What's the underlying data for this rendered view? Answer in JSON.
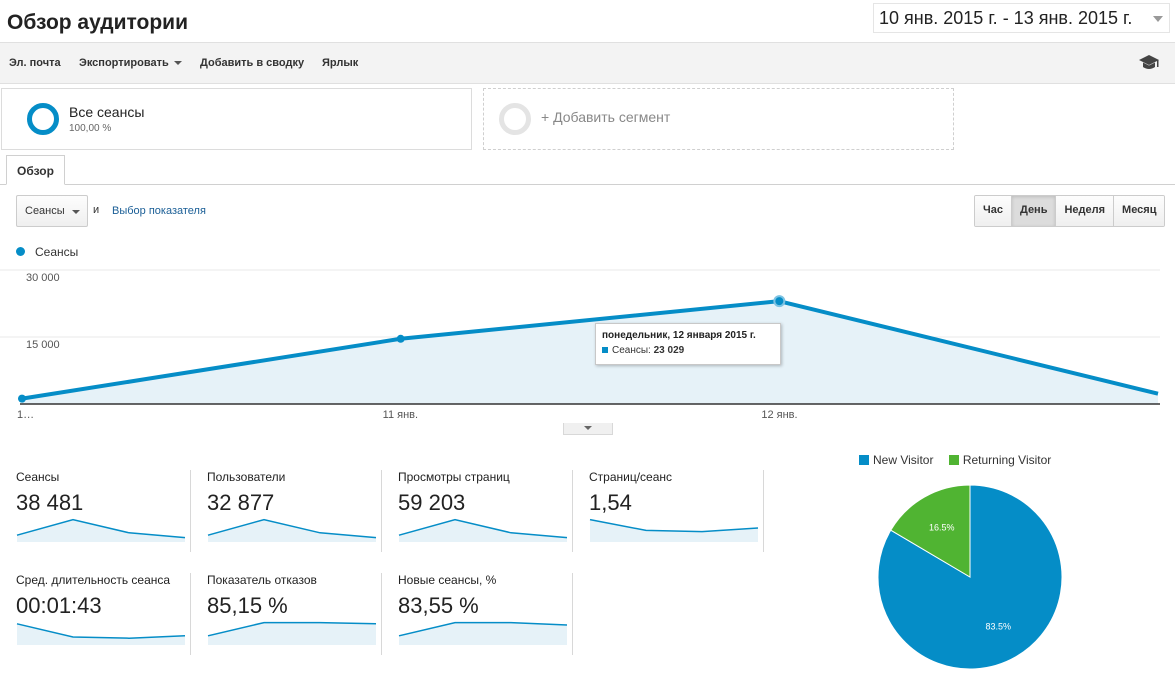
{
  "header": {
    "title": "Обзор аудитории",
    "date_range": "10 янв. 2015 г. - 13 янв. 2015 г."
  },
  "toolbar": {
    "email": "Эл. почта",
    "export": "Экспортировать",
    "add_dashboard": "Добавить в сводку",
    "shortcut": "Ярлык"
  },
  "segments": {
    "all_name": "Все сеансы",
    "all_pct": "100,00 %",
    "add_label": "+ Добавить сегмент"
  },
  "tabs": {
    "overview": "Обзор"
  },
  "controls": {
    "metric": "Сеансы",
    "and": "и",
    "pick_metric": "Выбор показателя",
    "periods": [
      "Час",
      "День",
      "Неделя",
      "Месяц"
    ],
    "active_period": "День"
  },
  "colors": {
    "accent": "#058dc7",
    "returning": "#50b432",
    "area_fill": "#e6f2f8"
  },
  "chart_data": [
    {
      "type": "area",
      "series": [
        {
          "name": "Сеансы",
          "values": [
            1200,
            14600,
            23029,
            2300
          ]
        }
      ],
      "x": [
        "1…",
        "11 янв.",
        "12 янв.",
        ""
      ],
      "ylim": [
        0,
        30000
      ],
      "yticks": [
        "30 000",
        "15 000"
      ],
      "tick_values": [
        30000,
        15000
      ],
      "grid": true,
      "tooltip": {
        "title": "понедельник, 12 января 2015 г.",
        "label": "Сеансы:",
        "value": "23 029",
        "point_index": 2
      }
    },
    {
      "type": "pie",
      "categories": [
        "New Visitor",
        "Returning Visitor"
      ],
      "values": [
        83.5,
        16.5
      ],
      "labels": [
        "83.5%",
        "16.5%"
      ],
      "colors": [
        "#058dc7",
        "#50b432"
      ],
      "legend": "top"
    }
  ],
  "kpis": [
    {
      "label": "Сеансы",
      "value": "38 481",
      "spark": [
        0.8,
        0.15,
        0.7,
        0.9
      ]
    },
    {
      "label": "Пользователи",
      "value": "32 877",
      "spark": [
        0.8,
        0.15,
        0.7,
        0.9
      ]
    },
    {
      "label": "Просмотры страниц",
      "value": "59 203",
      "spark": [
        0.8,
        0.15,
        0.7,
        0.9
      ]
    },
    {
      "label": "Страниц/сеанс",
      "value": "1,54",
      "spark": [
        0.15,
        0.6,
        0.65,
        0.5
      ]
    },
    {
      "label": "Сред. длительность сеанса",
      "value": "00:01:43",
      "spark": [
        0.2,
        0.75,
        0.8,
        0.7
      ]
    },
    {
      "label": "Показатель отказов",
      "value": "85,15 %",
      "spark": [
        0.7,
        0.15,
        0.15,
        0.2
      ]
    },
    {
      "label": "Новые сеансы, %",
      "value": "83,55 %",
      "spark": [
        0.7,
        0.15,
        0.15,
        0.25
      ]
    }
  ]
}
